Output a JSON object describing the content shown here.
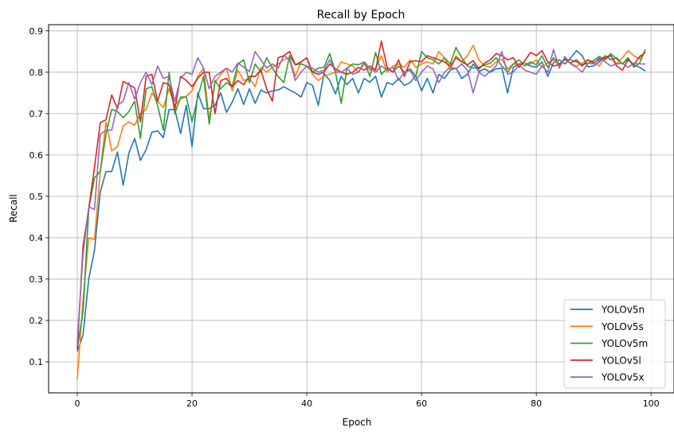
{
  "chart_data": {
    "type": "line",
    "title": "Recall by Epoch",
    "xlabel": "Epoch",
    "ylabel": "Recall",
    "xlim": [
      -5,
      104
    ],
    "ylim": [
      0.025,
      0.915
    ],
    "xticks": [
      0,
      20,
      40,
      60,
      80,
      100
    ],
    "yticks": [
      0.1,
      0.2,
      0.3,
      0.4,
      0.5,
      0.6,
      0.7,
      0.8,
      0.9
    ],
    "xtick_labels": [
      "0",
      "20",
      "40",
      "60",
      "80",
      "100"
    ],
    "ytick_labels": [
      "0.1",
      "0.2",
      "0.3",
      "0.4",
      "0.5",
      "0.6",
      "0.7",
      "0.8",
      "0.9"
    ],
    "grid": true,
    "legend_position": "bottom-right",
    "series": [
      {
        "name": "YOLOv5n",
        "color": "#1f77b4",
        "values": [
          0.125,
          0.165,
          0.3,
          0.37,
          0.51,
          0.56,
          0.56,
          0.607,
          0.527,
          0.605,
          0.64,
          0.587,
          0.613,
          0.655,
          0.658,
          0.642,
          0.71,
          0.71,
          0.652,
          0.72,
          0.62,
          0.75,
          0.712,
          0.712,
          0.72,
          0.75,
          0.703,
          0.728,
          0.76,
          0.722,
          0.76,
          0.725,
          0.757,
          0.75,
          0.755,
          0.757,
          0.765,
          0.757,
          0.75,
          0.74,
          0.775,
          0.768,
          0.72,
          0.797,
          0.78,
          0.748,
          0.79,
          0.77,
          0.785,
          0.75,
          0.785,
          0.776,
          0.79,
          0.74,
          0.775,
          0.77,
          0.785,
          0.768,
          0.775,
          0.792,
          0.755,
          0.785,
          0.75,
          0.795,
          0.785,
          0.805,
          0.81,
          0.785,
          0.795,
          0.82,
          0.802,
          0.808,
          0.8,
          0.808,
          0.81,
          0.75,
          0.812,
          0.82,
          0.822,
          0.815,
          0.812,
          0.825,
          0.79,
          0.823,
          0.83,
          0.82,
          0.835,
          0.852,
          0.84,
          0.813,
          0.815,
          0.825,
          0.84,
          0.83,
          0.835,
          0.82,
          0.832,
          0.818,
          0.812,
          0.803
        ]
      },
      {
        "name": "YOLOv5s",
        "color": "#ff7f0e",
        "values": [
          0.057,
          0.25,
          0.4,
          0.395,
          0.56,
          0.68,
          0.61,
          0.62,
          0.67,
          0.68,
          0.672,
          0.7,
          0.71,
          0.75,
          0.73,
          0.715,
          0.76,
          0.72,
          0.735,
          0.742,
          0.755,
          0.79,
          0.81,
          0.685,
          0.775,
          0.795,
          0.81,
          0.755,
          0.805,
          0.78,
          0.785,
          0.765,
          0.812,
          0.8,
          0.812,
          0.82,
          0.83,
          0.835,
          0.79,
          0.825,
          0.835,
          0.795,
          0.78,
          0.79,
          0.795,
          0.8,
          0.825,
          0.82,
          0.815,
          0.8,
          0.82,
          0.805,
          0.81,
          0.84,
          0.8,
          0.815,
          0.82,
          0.812,
          0.83,
          0.812,
          0.82,
          0.825,
          0.82,
          0.85,
          0.835,
          0.805,
          0.84,
          0.825,
          0.84,
          0.865,
          0.83,
          0.815,
          0.812,
          0.825,
          0.832,
          0.808,
          0.82,
          0.818,
          0.822,
          0.82,
          0.83,
          0.812,
          0.822,
          0.83,
          0.815,
          0.832,
          0.82,
          0.815,
          0.822,
          0.83,
          0.825,
          0.815,
          0.838,
          0.84,
          0.82,
          0.835,
          0.852,
          0.84,
          0.832,
          0.852
        ]
      },
      {
        "name": "YOLOv5m",
        "color": "#2ca02c",
        "values": [
          0.135,
          0.22,
          0.47,
          0.545,
          0.56,
          0.65,
          0.71,
          0.705,
          0.69,
          0.705,
          0.73,
          0.64,
          0.76,
          0.765,
          0.72,
          0.66,
          0.8,
          0.7,
          0.74,
          0.74,
          0.68,
          0.74,
          0.79,
          0.675,
          0.78,
          0.76,
          0.775,
          0.765,
          0.82,
          0.83,
          0.775,
          0.82,
          0.8,
          0.835,
          0.81,
          0.79,
          0.775,
          0.84,
          0.818,
          0.82,
          0.815,
          0.8,
          0.81,
          0.812,
          0.845,
          0.8,
          0.725,
          0.81,
          0.82,
          0.818,
          0.825,
          0.79,
          0.848,
          0.795,
          0.81,
          0.8,
          0.815,
          0.8,
          0.808,
          0.79,
          0.85,
          0.835,
          0.83,
          0.82,
          0.835,
          0.82,
          0.86,
          0.835,
          0.815,
          0.81,
          0.812,
          0.818,
          0.822,
          0.835,
          0.815,
          0.8,
          0.82,
          0.83,
          0.815,
          0.825,
          0.818,
          0.84,
          0.812,
          0.835,
          0.82,
          0.83,
          0.83,
          0.825,
          0.818,
          0.822,
          0.828,
          0.838,
          0.83,
          0.845,
          0.832,
          0.82,
          0.835,
          0.812,
          0.822,
          0.855
        ]
      },
      {
        "name": "YOLOv5l",
        "color": "#d62728",
        "values": [
          0.13,
          0.38,
          0.47,
          0.57,
          0.678,
          0.685,
          0.745,
          0.712,
          0.778,
          0.77,
          0.762,
          0.68,
          0.79,
          0.795,
          0.73,
          0.775,
          0.77,
          0.71,
          0.79,
          0.78,
          0.765,
          0.785,
          0.8,
          0.8,
          0.7,
          0.78,
          0.785,
          0.765,
          0.78,
          0.77,
          0.79,
          0.79,
          0.805,
          0.76,
          0.73,
          0.835,
          0.84,
          0.85,
          0.818,
          0.825,
          0.835,
          0.8,
          0.795,
          0.8,
          0.82,
          0.808,
          0.8,
          0.795,
          0.8,
          0.812,
          0.805,
          0.815,
          0.805,
          0.875,
          0.812,
          0.8,
          0.83,
          0.79,
          0.825,
          0.828,
          0.825,
          0.84,
          0.835,
          0.83,
          0.825,
          0.815,
          0.835,
          0.825,
          0.818,
          0.828,
          0.808,
          0.822,
          0.83,
          0.845,
          0.84,
          0.83,
          0.835,
          0.812,
          0.828,
          0.848,
          0.84,
          0.852,
          0.825,
          0.815,
          0.818,
          0.832,
          0.822,
          0.83,
          0.815,
          0.83,
          0.822,
          0.83,
          0.835,
          0.84,
          0.815,
          0.805,
          0.83,
          0.818,
          0.838,
          0.848
        ]
      },
      {
        "name": "YOLOv5x",
        "color": "#9467bd",
        "values": [
          0.148,
          0.36,
          0.475,
          0.468,
          0.65,
          0.66,
          0.66,
          0.72,
          0.73,
          0.775,
          0.735,
          0.775,
          0.8,
          0.77,
          0.815,
          0.785,
          0.79,
          0.73,
          0.785,
          0.8,
          0.795,
          0.835,
          0.81,
          0.76,
          0.79,
          0.8,
          0.81,
          0.8,
          0.822,
          0.812,
          0.802,
          0.85,
          0.83,
          0.81,
          0.82,
          0.81,
          0.84,
          0.83,
          0.78,
          0.8,
          0.815,
          0.81,
          0.8,
          0.805,
          0.83,
          0.8,
          0.8,
          0.81,
          0.795,
          0.8,
          0.825,
          0.81,
          0.8,
          0.815,
          0.805,
          0.812,
          0.78,
          0.8,
          0.805,
          0.78,
          0.8,
          0.815,
          0.808,
          0.775,
          0.8,
          0.812,
          0.808,
          0.82,
          0.805,
          0.75,
          0.8,
          0.79,
          0.802,
          0.815,
          0.85,
          0.795,
          0.8,
          0.818,
          0.805,
          0.8,
          0.795,
          0.815,
          0.8,
          0.855,
          0.81,
          0.838,
          0.82,
          0.812,
          0.8,
          0.822,
          0.82,
          0.835,
          0.825,
          0.815,
          0.82,
          0.822,
          0.812,
          0.822,
          0.82,
          0.82
        ]
      }
    ]
  }
}
